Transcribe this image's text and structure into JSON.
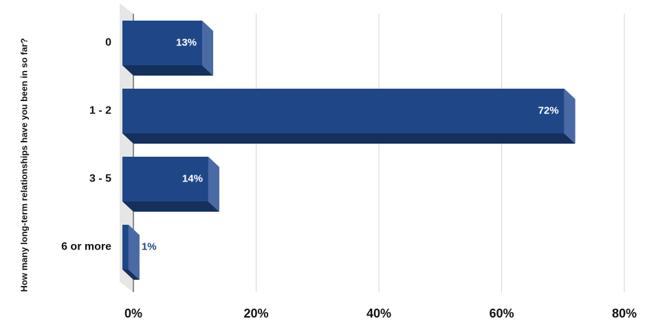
{
  "chart_data": {
    "type": "bar",
    "orientation": "horizontal",
    "y_axis_label": "How many long-term relationships have you been in so far?",
    "categories": [
      "0",
      "1 - 2",
      "3 - 5",
      "6 or more"
    ],
    "values": [
      13,
      72,
      14,
      1
    ],
    "value_labels": [
      "13%",
      "72%",
      "14%",
      "1%"
    ],
    "color": "#1f4788",
    "xlim": [
      0,
      80
    ],
    "xticks": [
      {
        "value": 0,
        "label": "0%"
      },
      {
        "value": 20,
        "label": "20%"
      },
      {
        "value": 40,
        "label": "40%"
      },
      {
        "value": 60,
        "label": "60%"
      },
      {
        "value": 80,
        "label": "80%"
      }
    ],
    "grid": true
  }
}
